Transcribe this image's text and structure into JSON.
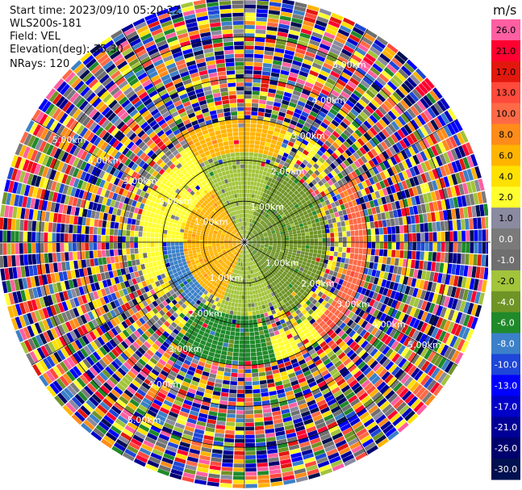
{
  "header": {
    "start_time": "Start time: 2023/09/10 05:20:22",
    "instrument": "WLS200s-181",
    "field": "Field: VEL",
    "elevation": "Elevation(deg): 35.30",
    "nrays": "NRays: 120"
  },
  "chart_data": {
    "type": "heatmap",
    "projection": "polar-ppi",
    "field": "VEL",
    "units": "m/s",
    "nrays": 120,
    "elevation_deg": 35.3,
    "max_range_km": 6.0,
    "range_rings_km": [
      1,
      2,
      3,
      4,
      5
    ],
    "range_ring_labels": [
      "1.00km",
      "2.00km",
      "3.00km",
      "4.00km",
      "5.00km"
    ],
    "grid": true,
    "colorbar": {
      "title": "m/s",
      "placement": "right",
      "bins": [
        {
          "label": "26.0",
          "color": "#ff5fa2"
        },
        {
          "label": "21.0",
          "color": "#ff0030"
        },
        {
          "label": "17.0",
          "color": "#e2180f"
        },
        {
          "label": "13.0",
          "color": "#ff4a3c"
        },
        {
          "label": "10.0",
          "color": "#ff6a46"
        },
        {
          "label": "8.0",
          "color": "#ff8c1a"
        },
        {
          "label": "6.0",
          "color": "#ffb400"
        },
        {
          "label": "4.0",
          "color": "#ffe100"
        },
        {
          "label": "2.0",
          "color": "#ffff30"
        },
        {
          "label": "1.0",
          "color": "#8a8aa0"
        },
        {
          "label": "0.0",
          "color": "#7a7a7a"
        },
        {
          "label": "-1.0",
          "color": "#6f6f6f"
        },
        {
          "label": "-2.0",
          "color": "#a2c43a"
        },
        {
          "label": "-4.0",
          "color": "#6f9426"
        },
        {
          "label": "-6.0",
          "color": "#1f8a2a"
        },
        {
          "label": "-8.0",
          "color": "#3b80c8"
        },
        {
          "label": "-10.0",
          "color": "#1e46d8"
        },
        {
          "label": "-13.0",
          "color": "#0000ff"
        },
        {
          "label": "-17.0",
          "color": "#0000c8"
        },
        {
          "label": "-21.0",
          "color": "#000096"
        },
        {
          "label": "-26.0",
          "color": "#00006e"
        },
        {
          "label": "-30.0",
          "color": "#001050"
        }
      ]
    },
    "velocity_regions": [
      {
        "az_from": 20,
        "az_to": 150,
        "r_from_km": 0.0,
        "r_to_km": 2.0,
        "value": -4.0,
        "desc": "green (approaching) east sector"
      },
      {
        "az_from": 150,
        "az_to": 200,
        "r_from_km": 0.0,
        "r_to_km": 1.8,
        "value": -2.0,
        "desc": "light green south"
      },
      {
        "az_from": 330,
        "az_to": 380,
        "r_from_km": 0.0,
        "r_to_km": 2.2,
        "value": -2.0,
        "desc": "light green north"
      },
      {
        "az_from": 200,
        "az_to": 330,
        "r_from_km": 0.0,
        "r_to_km": 1.5,
        "value": 6.0,
        "desc": "orange (receding) west sector"
      },
      {
        "az_from": 220,
        "az_to": 270,
        "r_from_km": 1.2,
        "r_to_km": 2.0,
        "value": -8.0,
        "desc": "blue band west"
      },
      {
        "az_from": 250,
        "az_to": 330,
        "r_from_km": 1.4,
        "r_to_km": 2.6,
        "value": 2.0,
        "desc": "yellow band northwest"
      },
      {
        "az_from": 60,
        "az_to": 140,
        "r_from_km": 2.6,
        "r_to_km": 4.0,
        "value": 10.0,
        "desc": "salmon east outer"
      },
      {
        "az_from": 130,
        "az_to": 165,
        "r_from_km": 2.4,
        "r_to_km": 3.4,
        "value": 2.0,
        "desc": "yellow southeast"
      },
      {
        "az_from": 165,
        "az_to": 215,
        "r_from_km": 1.8,
        "r_to_km": 3.2,
        "value": -6.0,
        "desc": "green south outer"
      },
      {
        "az_from": 330,
        "az_to": 380,
        "r_from_km": 2.2,
        "r_to_km": 3.0,
        "value": 6.0,
        "desc": "orange north outer"
      }
    ],
    "noise_beyond_km": 3.0
  }
}
